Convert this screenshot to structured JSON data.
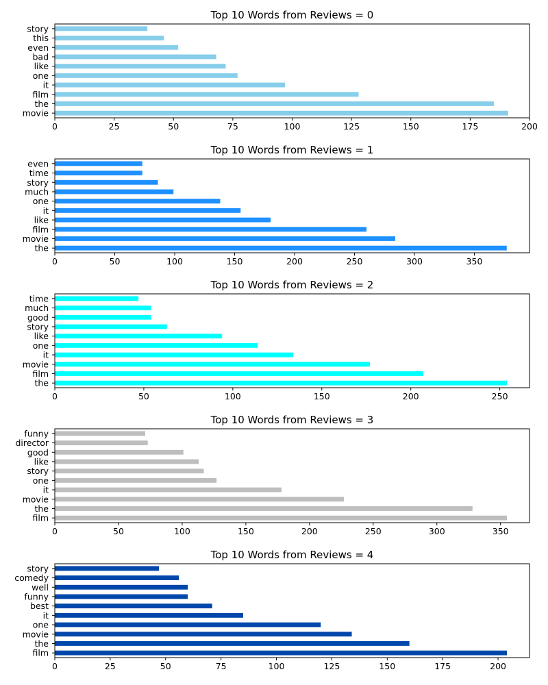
{
  "chart_data": [
    {
      "type": "bar",
      "orientation": "horizontal",
      "title": "Top 10 Words from Reviews = 0",
      "categories": [
        "movie",
        "the",
        "film",
        "it",
        "one",
        "like",
        "bad",
        "even",
        "this",
        "story"
      ],
      "values": [
        191,
        185,
        128,
        97,
        77,
        72,
        68,
        52,
        46,
        39
      ],
      "xlim": [
        0,
        200
      ],
      "xticks": [
        0,
        25,
        50,
        75,
        100,
        125,
        150,
        175,
        200
      ],
      "color": "#87ceeb",
      "grid": false
    },
    {
      "type": "bar",
      "orientation": "horizontal",
      "title": "Top 10 Words from Reviews = 1",
      "categories": [
        "the",
        "movie",
        "film",
        "like",
        "it",
        "one",
        "much",
        "story",
        "time",
        "even"
      ],
      "values": [
        377,
        284,
        260,
        180,
        155,
        138,
        99,
        86,
        73,
        73
      ],
      "xlim": [
        0,
        396
      ],
      "xticks": [
        0,
        50,
        100,
        150,
        200,
        250,
        300,
        350
      ],
      "color": "#1e90ff",
      "grid": false
    },
    {
      "type": "bar",
      "orientation": "horizontal",
      "title": "Top 10 Words from Reviews = 2",
      "categories": [
        "the",
        "film",
        "movie",
        "it",
        "one",
        "like",
        "story",
        "good",
        "much",
        "time"
      ],
      "values": [
        254,
        207,
        177,
        134,
        114,
        94,
        63,
        54,
        54,
        47
      ],
      "xlim": [
        0,
        266.7
      ],
      "xticks": [
        0,
        50,
        100,
        150,
        200,
        250
      ],
      "color": "#00ffff",
      "grid": false
    },
    {
      "type": "bar",
      "orientation": "horizontal",
      "title": "Top 10 Words from Reviews = 3",
      "categories": [
        "film",
        "the",
        "movie",
        "it",
        "one",
        "story",
        "like",
        "good",
        "director",
        "funny"
      ],
      "values": [
        355,
        328,
        227,
        178,
        127,
        117,
        113,
        101,
        73,
        71
      ],
      "xlim": [
        0,
        372.75
      ],
      "xticks": [
        0,
        50,
        100,
        150,
        200,
        250,
        300,
        350
      ],
      "color": "#bebebe",
      "grid": false
    },
    {
      "type": "bar",
      "orientation": "horizontal",
      "title": "Top 10 Words from Reviews = 4",
      "categories": [
        "film",
        "the",
        "movie",
        "one",
        "it",
        "best",
        "funny",
        "well",
        "comedy",
        "story"
      ],
      "values": [
        204,
        160,
        134,
        120,
        85,
        71,
        60,
        60,
        56,
        47
      ],
      "xlim": [
        0,
        214.2
      ],
      "xticks": [
        0,
        25,
        50,
        75,
        100,
        125,
        150,
        175,
        200
      ],
      "color": "#0047ab",
      "grid": false
    }
  ]
}
